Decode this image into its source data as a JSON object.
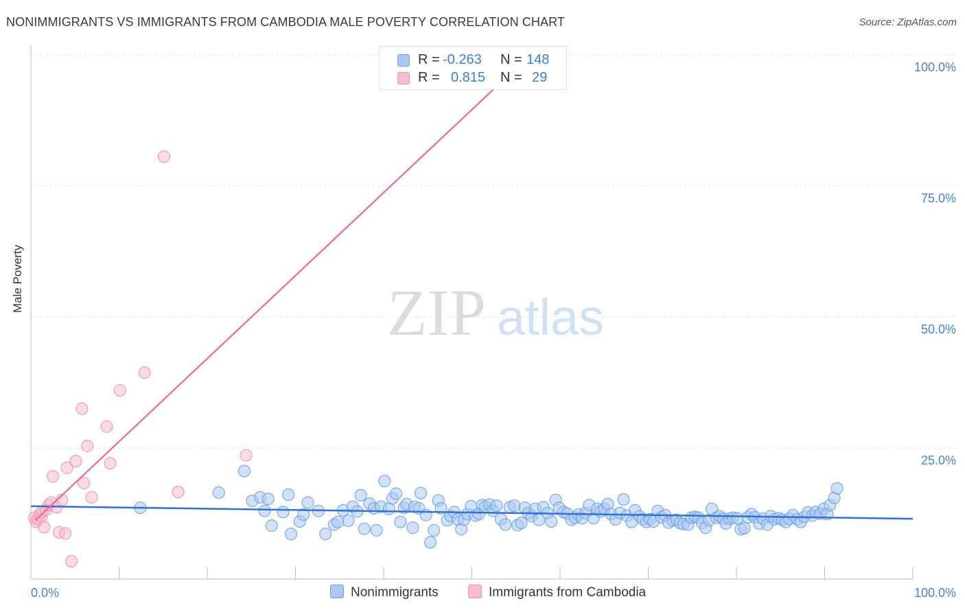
{
  "header": {
    "title": "NONIMMIGRANTS VS IMMIGRANTS FROM CAMBODIA MALE POVERTY CORRELATION CHART",
    "source": "Source: ZipAtlas.com"
  },
  "watermark": {
    "zip": "ZIP",
    "atlas": "atlas"
  },
  "colors": {
    "blue_fill": "#a9c9f2",
    "blue_stroke": "#6a9fe0",
    "blue_line": "#2f72d6",
    "pink_fill": "#f6bccf",
    "pink_stroke": "#ee90af",
    "pink_line": "#e8689a",
    "tick_text": "#4a7fd3",
    "grid": "#dddddd"
  },
  "legend_top": {
    "rows": [
      {
        "r_label": "R =",
        "r_value": "-0.263",
        "n_label": "N =",
        "n_value": "148"
      },
      {
        "r_label": "R =",
        "r_value": "0.815",
        "n_label": "N =",
        "n_value": "29"
      }
    ]
  },
  "legend_bottom": {
    "items": [
      "Nonimmigrants",
      "Immigrants from Cambodia"
    ]
  },
  "chart_data": {
    "type": "scatter",
    "title": "NONIMMIGRANTS VS IMMIGRANTS FROM CAMBODIA MALE POVERTY CORRELATION CHART",
    "xlabel": "",
    "ylabel": "Male Poverty",
    "xlim": [
      0,
      100
    ],
    "ylim": [
      0,
      100
    ],
    "x_tick_labels": [
      "0.0%",
      "100.0%"
    ],
    "y_tick_labels": [
      "25.0%",
      "50.0%",
      "75.0%",
      "100.0%"
    ],
    "y_ticks": [
      25,
      50,
      75,
      100
    ],
    "grid": true,
    "series": [
      {
        "name": "Nonimmigrants",
        "r": -0.263,
        "n": 148,
        "trend": {
          "x": [
            0,
            100
          ],
          "y": [
            13.9,
            11.5
          ]
        },
        "points": [
          [
            12.4,
            13.6
          ],
          [
            21.3,
            16.5
          ],
          [
            24.2,
            20.6
          ],
          [
            25.1,
            14.9
          ],
          [
            26.0,
            15.6
          ],
          [
            26.5,
            13.0
          ],
          [
            26.9,
            15.3
          ],
          [
            27.3,
            10.2
          ],
          [
            28.6,
            12.8
          ],
          [
            29.2,
            16.1
          ],
          [
            29.5,
            8.6
          ],
          [
            30.5,
            11.0
          ],
          [
            30.9,
            12.3
          ],
          [
            31.4,
            14.6
          ],
          [
            32.6,
            13.0
          ],
          [
            33.4,
            8.6
          ],
          [
            34.4,
            10.4
          ],
          [
            34.8,
            10.9
          ],
          [
            35.4,
            13.1
          ],
          [
            36.0,
            11.1
          ],
          [
            36.5,
            13.8
          ],
          [
            37.0,
            12.9
          ],
          [
            37.4,
            16.0
          ],
          [
            37.8,
            9.6
          ],
          [
            38.4,
            14.4
          ],
          [
            38.9,
            13.5
          ],
          [
            39.2,
            9.3
          ],
          [
            39.7,
            13.8
          ],
          [
            40.1,
            18.7
          ],
          [
            40.6,
            13.4
          ],
          [
            41.0,
            15.4
          ],
          [
            41.4,
            16.3
          ],
          [
            41.9,
            10.9
          ],
          [
            42.3,
            13.6
          ],
          [
            42.6,
            14.3
          ],
          [
            43.3,
            9.8
          ],
          [
            43.5,
            13.8
          ],
          [
            44.0,
            13.5
          ],
          [
            44.2,
            16.4
          ],
          [
            44.8,
            12.2
          ],
          [
            45.3,
            7.0
          ],
          [
            45.7,
            9.3
          ],
          [
            46.2,
            15.0
          ],
          [
            46.5,
            13.5
          ],
          [
            47.2,
            11.2
          ],
          [
            47.6,
            12.0
          ],
          [
            48.0,
            12.8
          ],
          [
            48.4,
            11.4
          ],
          [
            48.8,
            9.5
          ],
          [
            49.1,
            11.3
          ],
          [
            49.5,
            12.4
          ],
          [
            49.9,
            13.9
          ],
          [
            50.4,
            12.1
          ],
          [
            50.8,
            12.4
          ],
          [
            51.2,
            14.1
          ],
          [
            51.5,
            13.8
          ],
          [
            52.0,
            14.2
          ],
          [
            52.4,
            13.0
          ],
          [
            52.8,
            14.0
          ],
          [
            53.3,
            11.4
          ],
          [
            53.8,
            10.4
          ],
          [
            54.3,
            13.7
          ],
          [
            54.8,
            14.0
          ],
          [
            55.2,
            10.3
          ],
          [
            55.6,
            10.7
          ],
          [
            56.0,
            13.6
          ],
          [
            56.4,
            12.6
          ],
          [
            56.8,
            12.0
          ],
          [
            57.2,
            13.4
          ],
          [
            57.6,
            11.3
          ],
          [
            58.1,
            13.7
          ],
          [
            58.6,
            12.6
          ],
          [
            59.0,
            11.0
          ],
          [
            59.5,
            15.1
          ],
          [
            59.9,
            13.6
          ],
          [
            60.4,
            12.8
          ],
          [
            60.8,
            12.5
          ],
          [
            61.3,
            11.3
          ],
          [
            61.7,
            11.7
          ],
          [
            62.1,
            12.3
          ],
          [
            62.5,
            11.6
          ],
          [
            62.9,
            12.6
          ],
          [
            63.3,
            14.1
          ],
          [
            63.8,
            11.6
          ],
          [
            64.2,
            13.4
          ],
          [
            64.6,
            12.9
          ],
          [
            65.0,
            13.4
          ],
          [
            65.4,
            14.3
          ],
          [
            65.8,
            12.4
          ],
          [
            66.3,
            11.4
          ],
          [
            66.8,
            12.6
          ],
          [
            67.2,
            15.2
          ],
          [
            67.6,
            12.1
          ],
          [
            68.1,
            10.9
          ],
          [
            68.5,
            13.1
          ],
          [
            69.0,
            12.0
          ],
          [
            69.4,
            11.4
          ],
          [
            69.8,
            10.9
          ],
          [
            70.2,
            11.4
          ],
          [
            70.6,
            11.0
          ],
          [
            71.1,
            13.0
          ],
          [
            71.5,
            11.8
          ],
          [
            71.9,
            12.2
          ],
          [
            72.3,
            10.8
          ],
          [
            72.8,
            11.2
          ],
          [
            73.2,
            11.3
          ],
          [
            73.6,
            10.7
          ],
          [
            74.0,
            10.5
          ],
          [
            74.5,
            10.4
          ],
          [
            74.9,
            11.7
          ],
          [
            75.3,
            11.9
          ],
          [
            75.7,
            11.7
          ],
          [
            76.1,
            10.7
          ],
          [
            76.5,
            9.8
          ],
          [
            76.9,
            11.2
          ],
          [
            77.2,
            13.4
          ],
          [
            77.7,
            11.7
          ],
          [
            78.1,
            12.0
          ],
          [
            78.5,
            11.5
          ],
          [
            78.8,
            10.6
          ],
          [
            79.2,
            11.5
          ],
          [
            79.6,
            11.7
          ],
          [
            80.1,
            11.6
          ],
          [
            80.5,
            9.5
          ],
          [
            80.9,
            9.7
          ],
          [
            81.3,
            11.8
          ],
          [
            81.7,
            12.4
          ],
          [
            82.1,
            11.8
          ],
          [
            82.6,
            10.6
          ],
          [
            83.0,
            11.5
          ],
          [
            83.5,
            10.4
          ],
          [
            83.9,
            12.0
          ],
          [
            84.3,
            11.4
          ],
          [
            84.8,
            11.6
          ],
          [
            85.2,
            11.3
          ],
          [
            85.6,
            10.9
          ],
          [
            86.0,
            11.5
          ],
          [
            86.4,
            12.2
          ],
          [
            86.9,
            11.4
          ],
          [
            87.3,
            10.9
          ],
          [
            87.7,
            11.9
          ],
          [
            88.1,
            12.7
          ],
          [
            88.6,
            12.1
          ],
          [
            89.0,
            12.8
          ],
          [
            89.5,
            12.5
          ],
          [
            89.9,
            13.4
          ],
          [
            90.3,
            12.4
          ],
          [
            90.6,
            14.1
          ],
          [
            91.1,
            15.5
          ],
          [
            91.4,
            17.3
          ]
        ]
      },
      {
        "name": "Immigrants from Cambodia",
        "r": 0.815,
        "n": 29,
        "trend": {
          "x": [
            0.5,
            56.6
          ],
          "y": [
            11.2,
            100
          ]
        },
        "points": [
          [
            0.4,
            11.7
          ],
          [
            0.6,
            10.9
          ],
          [
            0.8,
            11.4
          ],
          [
            1.0,
            12.3
          ],
          [
            1.2,
            11.8
          ],
          [
            1.3,
            12.9
          ],
          [
            1.5,
            9.9
          ],
          [
            1.7,
            13.2
          ],
          [
            2.0,
            14.1
          ],
          [
            2.3,
            14.6
          ],
          [
            2.5,
            19.6
          ],
          [
            2.9,
            13.7
          ],
          [
            3.2,
            8.9
          ],
          [
            3.5,
            15.1
          ],
          [
            3.9,
            8.7
          ],
          [
            4.1,
            21.2
          ],
          [
            4.6,
            3.4
          ],
          [
            5.1,
            22.5
          ],
          [
            5.8,
            32.5
          ],
          [
            6.0,
            18.3
          ],
          [
            6.4,
            25.4
          ],
          [
            6.9,
            15.6
          ],
          [
            8.6,
            29.1
          ],
          [
            9.0,
            22.1
          ],
          [
            10.1,
            36.0
          ],
          [
            12.9,
            39.4
          ],
          [
            15.1,
            80.6
          ],
          [
            16.7,
            16.6
          ],
          [
            24.4,
            23.6
          ]
        ]
      }
    ]
  }
}
